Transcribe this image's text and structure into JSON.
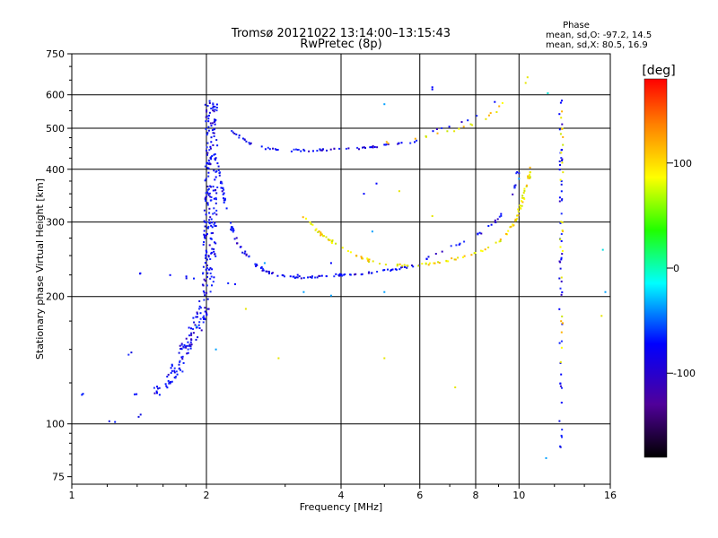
{
  "chart_data": {
    "type": "scatter",
    "title": "Tromsø 20121022 13:14:00–13:15:43",
    "subtitle": "RwPretec (8p)",
    "xlabel": "Frequency [MHz]",
    "ylabel": "Stationary phase Virtual Height [km]",
    "x_scale": "log",
    "y_scale": "log",
    "xlim": [
      1,
      16
    ],
    "ylim": [
      72,
      750
    ],
    "x_ticks": [
      1,
      2,
      4,
      6,
      8,
      10,
      16
    ],
    "x_tick_labels": [
      "1",
      "2",
      "4",
      "6",
      "8",
      "10",
      "16"
    ],
    "y_ticks": [
      75,
      100,
      200,
      300,
      400,
      500,
      600,
      750
    ],
    "y_tick_labels": [
      "75",
      "100",
      "200",
      "300",
      "400",
      "500",
      "600",
      "750"
    ],
    "grid": true,
    "stats": {
      "title": "Phase",
      "line_o": "mean, sd,O: -97.2, 14.5",
      "line_x": "mean, sd,X:  80.5, 16.9"
    },
    "colorbar": {
      "label": "[deg]",
      "range": [
        -180,
        180
      ],
      "ticks": [
        100,
        0,
        -100
      ],
      "tick_labels": [
        "100",
        "0",
        "-100"
      ],
      "colors": [
        "#ff0000",
        "#ff8000",
        "#ffff00",
        "#00ff00",
        "#00ffff",
        "#0000ff",
        "#5000a0",
        "#000000"
      ]
    },
    "series": [
      {
        "phase": -100,
        "kind": "line",
        "density": 14,
        "points": [
          [
            1.05,
            118
          ],
          [
            1.06,
            117
          ]
        ]
      },
      {
        "phase": -100,
        "kind": "line",
        "density": 10,
        "points": [
          [
            1.18,
            102
          ],
          [
            1.3,
            101
          ],
          [
            1.4,
            104
          ],
          [
            1.5,
            108
          ]
        ]
      },
      {
        "phase": -100,
        "kind": "line",
        "density": 6,
        "points": [
          [
            1.36,
            118
          ],
          [
            1.45,
            118
          ]
        ]
      },
      {
        "phase": -100,
        "kind": "line",
        "density": 4,
        "points": [
          [
            1.34,
            145
          ],
          [
            1.36,
            148
          ]
        ]
      },
      {
        "phase": -100,
        "kind": "line",
        "density": 4,
        "points": [
          [
            1.4,
            227
          ],
          [
            1.43,
            228
          ]
        ]
      },
      {
        "phase": -100,
        "kind": "band",
        "density": 140,
        "points": [
          [
            1.55,
            118
          ],
          [
            1.65,
            125
          ],
          [
            1.75,
            140
          ],
          [
            1.85,
            160
          ],
          [
            1.92,
            175
          ],
          [
            1.97,
            185
          ],
          [
            2.0,
            200
          ],
          [
            2.02,
            220
          ],
          [
            2.03,
            250
          ],
          [
            2.04,
            300
          ],
          [
            2.05,
            360
          ],
          [
            2.05,
            430
          ],
          [
            2.05,
            500
          ],
          [
            2.05,
            590
          ]
        ],
        "spread": 0.07
      },
      {
        "phase": -100,
        "kind": "line",
        "density": 18,
        "points": [
          [
            1.62,
            224
          ],
          [
            1.72,
            223
          ],
          [
            1.82,
            222
          ],
          [
            1.9,
            220
          ]
        ]
      },
      {
        "phase": -100,
        "kind": "line",
        "density": 60,
        "points": [
          [
            2.08,
            445
          ],
          [
            2.15,
            380
          ],
          [
            2.22,
            320
          ],
          [
            2.3,
            280
          ],
          [
            2.4,
            258
          ],
          [
            2.55,
            240
          ],
          [
            2.7,
            230
          ],
          [
            2.9,
            224
          ],
          [
            3.2,
            222
          ],
          [
            3.6,
            223
          ],
          [
            4.0,
            225
          ],
          [
            4.5,
            227
          ],
          [
            5.0,
            230
          ],
          [
            5.5,
            234
          ],
          [
            6.0,
            238
          ]
        ]
      },
      {
        "phase": -100,
        "kind": "line",
        "density": 45,
        "points": [
          [
            2.2,
            515
          ],
          [
            2.3,
            490
          ],
          [
            2.45,
            465
          ],
          [
            2.6,
            452
          ],
          [
            2.8,
            446
          ],
          [
            3.1,
            443
          ],
          [
            3.5,
            443
          ],
          [
            4.0,
            446
          ],
          [
            4.5,
            450
          ],
          [
            5.0,
            455
          ],
          [
            5.5,
            460
          ],
          [
            6.0,
            466
          ]
        ]
      },
      {
        "phase": -100,
        "kind": "line",
        "density": 10,
        "points": [
          [
            2.15,
            213
          ],
          [
            2.35,
            215
          ]
        ]
      },
      {
        "phase": 100,
        "kind": "line",
        "density": 55,
        "points": [
          [
            3.3,
            310
          ],
          [
            3.6,
            282
          ],
          [
            3.9,
            265
          ],
          [
            4.3,
            250
          ],
          [
            4.7,
            242
          ],
          [
            5.2,
            238
          ],
          [
            5.8,
            237
          ],
          [
            6.5,
            240
          ],
          [
            7.2,
            246
          ],
          [
            8.0,
            254
          ],
          [
            8.8,
            264
          ],
          [
            9.5,
            285
          ],
          [
            9.9,
            310
          ],
          [
            10.2,
            340
          ],
          [
            10.5,
            380
          ],
          [
            10.7,
            410
          ]
        ]
      },
      {
        "phase": 100,
        "kind": "line",
        "density": 18,
        "points": [
          [
            5.0,
            462
          ],
          [
            5.8,
            472
          ],
          [
            6.6,
            485
          ],
          [
            7.4,
            498
          ],
          [
            8.2,
            520
          ],
          [
            9.0,
            555
          ],
          [
            9.3,
            590
          ]
        ]
      },
      {
        "phase": -100,
        "kind": "line",
        "density": 30,
        "points": [
          [
            6.2,
            246
          ],
          [
            6.8,
            258
          ],
          [
            7.5,
            270
          ],
          [
            8.2,
            283
          ],
          [
            8.8,
            298
          ],
          [
            9.3,
            320
          ],
          [
            9.6,
            345
          ],
          [
            9.85,
            375
          ],
          [
            10.0,
            405
          ]
        ]
      },
      {
        "phase": -100,
        "kind": "line",
        "density": 14,
        "points": [
          [
            6.3,
            490
          ],
          [
            7.0,
            505
          ],
          [
            7.8,
            525
          ],
          [
            8.5,
            555
          ],
          [
            9.0,
            590
          ]
        ]
      },
      {
        "phase": -100,
        "kind": "line",
        "density": 20,
        "points": [
          [
            12.4,
            610
          ],
          [
            12.4,
            470
          ],
          [
            12.4,
            370
          ],
          [
            12.4,
            320
          ],
          [
            12.4,
            250
          ],
          [
            12.4,
            190
          ],
          [
            12.4,
            150
          ],
          [
            12.4,
            120
          ],
          [
            12.4,
            84
          ]
        ]
      },
      {
        "phase": 100,
        "kind": "line",
        "density": 12,
        "points": [
          [
            12.45,
            600
          ],
          [
            12.45,
            460
          ],
          [
            12.45,
            320
          ],
          [
            12.45,
            210
          ],
          [
            12.45,
            140
          ]
        ]
      },
      {
        "phase": 80,
        "kind": "points",
        "points": [
          [
            10.35,
            640
          ],
          [
            10.45,
            660
          ],
          [
            12.4,
            140
          ],
          [
            15.3,
            180
          ],
          [
            7.2,
            122
          ],
          [
            5.0,
            143
          ],
          [
            2.9,
            143
          ]
        ]
      },
      {
        "phase": 120,
        "kind": "points",
        "points": [
          [
            2.45,
            187
          ],
          [
            5.4,
            355
          ],
          [
            6.4,
            310
          ],
          [
            11.6,
            605
          ]
        ]
      },
      {
        "phase": 10,
        "kind": "points",
        "points": [
          [
            11.6,
            605
          ],
          [
            15.4,
            258
          ]
        ]
      },
      {
        "phase": -60,
        "kind": "points",
        "points": [
          [
            5.0,
            570
          ],
          [
            5.0,
            205
          ],
          [
            3.8,
            201
          ],
          [
            3.3,
            205
          ],
          [
            4.7,
            285
          ],
          [
            2.7,
            240
          ],
          [
            1.9,
            170
          ],
          [
            2.1,
            150
          ],
          [
            11.5,
            83
          ],
          [
            15.6,
            205
          ],
          [
            10.0,
            380
          ]
        ]
      },
      {
        "phase": -120,
        "kind": "points",
        "points": [
          [
            6.4,
            618
          ],
          [
            6.4,
            625
          ],
          [
            4.8,
            370
          ],
          [
            4.5,
            350
          ],
          [
            3.2,
            225
          ],
          [
            3.8,
            240
          ]
        ]
      }
    ]
  }
}
